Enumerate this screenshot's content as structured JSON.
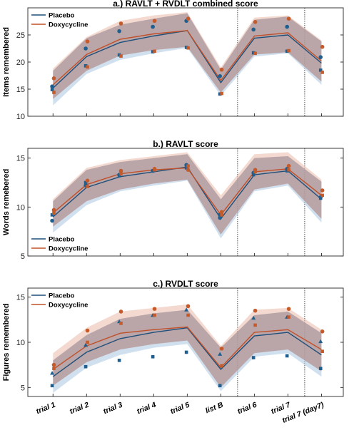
{
  "colors": {
    "placebo": "#1f4e79",
    "doxycycline": "#c0502a",
    "placebo_band": "#a9c7e2",
    "doxycycline_band": "#e9b9a8",
    "marker_placebo": "#1f5f8f",
    "marker_doxy": "#c55a2a"
  },
  "x_categories": [
    "trial 1",
    "trial 2",
    "trial 3",
    "trial 4",
    "trial 5",
    "list B",
    "trial 6",
    "trial 7",
    "trial 7 (day7)"
  ],
  "chart_data": [
    {
      "type": "line",
      "title": "a.) RAVLT + RVDLT combined score",
      "ylabel": "Items remembered",
      "ylim": [
        10,
        30
      ],
      "yticks": [
        10,
        15,
        20,
        25
      ],
      "legend": "top-left",
      "categories": [
        "trial 1",
        "trial 2",
        "trial 3",
        "trial 4",
        "trial 5",
        "list B",
        "trial 6",
        "trial 7",
        "trial 7 (day7)"
      ],
      "series": [
        {
          "name": "Placebo",
          "values": [
            15.2,
            21.0,
            23.6,
            24.8,
            25.8,
            16.2,
            24.4,
            25.0,
            19.8
          ],
          "band": [
            [
              12.0,
              18.4
            ],
            [
              17.8,
              24.4
            ],
            [
              20.4,
              26.9
            ],
            [
              21.6,
              28.0
            ],
            [
              22.6,
              29.0
            ],
            [
              13.8,
              18.6
            ],
            [
              21.0,
              27.8
            ],
            [
              21.6,
              28.4
            ],
            [
              15.8,
              23.8
            ]
          ],
          "markers": [
            [
              15.5,
              14.9
            ],
            [
              22.5,
              19.3
            ],
            [
              25.7,
              21.3
            ],
            [
              26.5,
              21.9
            ],
            [
              27.6,
              22.7
            ],
            [
              17.4,
              14.1
            ],
            [
              26.0,
              21.7
            ],
            [
              26.5,
              22.0
            ],
            [
              20.9,
              18.5
            ]
          ]
        },
        {
          "name": "Doxycycline",
          "values": [
            15.8,
            21.4,
            24.2,
            25.2,
            25.8,
            16.6,
            24.8,
            25.4,
            20.2
          ],
          "band": [
            [
              13.2,
              18.8
            ],
            [
              18.4,
              24.6
            ],
            [
              21.2,
              27.6
            ],
            [
              22.2,
              28.6
            ],
            [
              22.8,
              29.2
            ],
            [
              14.4,
              19.0
            ],
            [
              21.4,
              28.2
            ],
            [
              21.8,
              28.6
            ],
            [
              16.4,
              24.0
            ]
          ],
          "markers": [
            [
              17.0,
              14.4
            ],
            [
              23.8,
              19.1
            ],
            [
              27.1,
              21.1
            ],
            [
              27.6,
              22.0
            ],
            [
              28.0,
              22.6
            ],
            [
              18.6,
              14.2
            ],
            [
              27.4,
              21.6
            ],
            [
              28.0,
              22.1
            ],
            [
              22.8,
              18.1
            ]
          ]
        }
      ]
    },
    {
      "type": "line",
      "title": "b.) RAVLT score",
      "ylabel": "Words remebered",
      "ylim": [
        5,
        16
      ],
      "yticks": [
        5,
        10,
        15
      ],
      "legend": "bottom-left",
      "categories": [
        "trial 1",
        "trial 2",
        "trial 3",
        "trial 4",
        "trial 5",
        "list B",
        "trial 6",
        "trial 7",
        "trial 7 (day7)"
      ],
      "series": [
        {
          "name": "Placebo",
          "values": [
            9.0,
            12.0,
            13.1,
            13.6,
            14.1,
            8.8,
            13.3,
            13.7,
            10.8
          ],
          "band": [
            [
              7.4,
              10.6
            ],
            [
              10.2,
              13.8
            ],
            [
              11.6,
              14.6
            ],
            [
              12.2,
              15.0
            ],
            [
              12.7,
              15.4
            ],
            [
              6.8,
              10.8
            ],
            [
              11.6,
              15.0
            ],
            [
              12.2,
              15.2
            ],
            [
              8.4,
              12.6
            ]
          ],
          "markers": [
            [
              8.6,
              9.2
            ],
            [
              12.2,
              12.5
            ],
            [
              13.3,
              13.2
            ],
            [
              13.7,
              13.7
            ],
            [
              14.3,
              14.0
            ],
            [
              8.9,
              9.2
            ],
            [
              13.5,
              13.3
            ],
            [
              13.9,
              13.7
            ],
            [
              11.0,
              10.9
            ]
          ]
        },
        {
          "name": "Doxycycline",
          "values": [
            9.4,
            12.3,
            13.4,
            13.8,
            14.0,
            9.2,
            13.6,
            13.9,
            11.2
          ],
          "band": [
            [
              8.0,
              10.8
            ],
            [
              10.6,
              14.0
            ],
            [
              11.8,
              14.8
            ],
            [
              12.4,
              15.2
            ],
            [
              12.8,
              15.6
            ],
            [
              7.2,
              11.2
            ],
            [
              11.8,
              15.4
            ],
            [
              12.4,
              15.6
            ],
            [
              8.8,
              12.8
            ]
          ],
          "markers": [
            [
              9.7,
              9.4
            ],
            [
              12.7,
              12.1
            ],
            [
              13.7,
              13.4
            ],
            [
              13.9,
              13.8
            ],
            [
              13.8,
              14.2
            ],
            [
              9.5,
              9.2
            ],
            [
              13.8,
              13.6
            ],
            [
              14.2,
              13.8
            ],
            [
              11.7,
              11.2
            ]
          ]
        }
      ]
    },
    {
      "type": "line",
      "title": "c.) RVDLT score",
      "ylabel": "Figures remembered",
      "ylim": [
        4,
        16
      ],
      "yticks": [
        5,
        10,
        15
      ],
      "legend": "top-left",
      "categories": [
        "trial 1",
        "trial 2",
        "trial 3",
        "trial 4",
        "trial 5",
        "list B",
        "trial 6",
        "trial 7",
        "trial 7 (day7)"
      ],
      "series": [
        {
          "name": "Placebo",
          "values": [
            6.2,
            8.9,
            10.4,
            11.1,
            11.6,
            7.0,
            10.7,
            11.1,
            8.6
          ],
          "band": [
            [
              4.4,
              8.0
            ],
            [
              7.2,
              10.8
            ],
            [
              8.6,
              12.6
            ],
            [
              9.4,
              13.2
            ],
            [
              9.8,
              13.6
            ],
            [
              4.6,
              9.4
            ],
            [
              8.4,
              13.0
            ],
            [
              8.8,
              13.4
            ],
            [
              6.2,
              11.0
            ]
          ],
          "markers": [
            [
              6.6,
              5.2
            ],
            [
              9.7,
              7.3
            ],
            [
              12.3,
              8.0
            ],
            [
              13.0,
              8.4
            ],
            [
              13.6,
              8.9
            ],
            [
              8.7,
              5.2
            ],
            [
              12.7,
              8.3
            ],
            [
              12.8,
              8.5
            ],
            [
              10.1,
              7.1
            ]
          ]
        },
        {
          "name": "Doxycycline",
          "values": [
            7.0,
            9.6,
            11.0,
            11.4,
            11.7,
            7.2,
            11.1,
            11.4,
            9.2
          ],
          "band": [
            [
              5.2,
              8.8
            ],
            [
              7.8,
              11.6
            ],
            [
              9.2,
              13.4
            ],
            [
              9.8,
              13.8
            ],
            [
              10.2,
              14.2
            ],
            [
              5.0,
              9.6
            ],
            [
              8.8,
              13.6
            ],
            [
              9.2,
              13.8
            ],
            [
              6.8,
              11.4
            ]
          ],
          "markers": [
            [
              7.5,
              7.1
            ],
            [
              11.3,
              10.0
            ],
            [
              13.4,
              12.1
            ],
            [
              13.7,
              13.0
            ],
            [
              14.0,
              13.0
            ],
            [
              9.3,
              7.4
            ],
            [
              13.5,
              11.9
            ],
            [
              13.7,
              12.8
            ],
            [
              11.2,
              9.0
            ]
          ]
        }
      ]
    }
  ]
}
